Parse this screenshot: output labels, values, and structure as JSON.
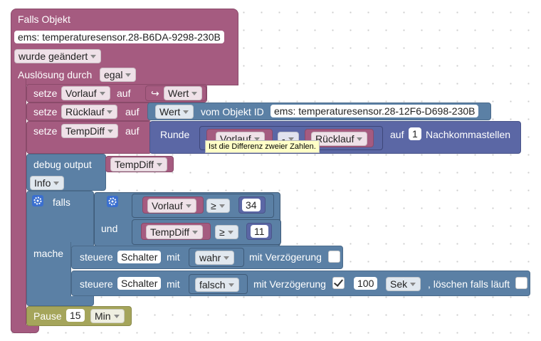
{
  "trigger": {
    "title": "Falls Objekt",
    "object_id": "ems: temperaturesensor.28-B6DA-9298-230B",
    "event": "wurde geändert",
    "trigger_label": "Auslösung durch",
    "trigger_value": "egal"
  },
  "set_vorlauf": {
    "keyword": "setze",
    "variable": "Vorlauf",
    "to": "auf",
    "icon": "↪",
    "value": "Wert"
  },
  "set_ruecklauf": {
    "keyword": "setze",
    "variable": "Rücklauf",
    "to": "auf",
    "value": "Wert",
    "from_label": "vom Objekt ID",
    "object_id": "ems: temperaturesensor.28-12F6-D698-230B"
  },
  "set_tempdiff": {
    "keyword": "setze",
    "variable": "TempDiff",
    "to": "auf",
    "round_label": "Runde",
    "left": "Vorlauf",
    "operator": "-",
    "right": "Rücklauf",
    "to_label": "auf",
    "decimals": 1,
    "decimals_label": "Nachkommastellen",
    "tooltip": "Ist die Differenz zweier Zahlen."
  },
  "debug": {
    "label": "debug output",
    "variable": "TempDiff",
    "level": "Info"
  },
  "if_block": {
    "if_label": "falls",
    "cond1": {
      "variable": "Vorlauf",
      "operator": "≥",
      "value": 34
    },
    "and_label": "und",
    "cond2": {
      "variable": "TempDiff",
      "operator": "≥",
      "value": 11
    },
    "do_label": "mache"
  },
  "control_on": {
    "keyword": "steuere",
    "target": "Schalter",
    "with_label": "mit",
    "value": "wahr",
    "delay_label": "mit Verzögerung"
  },
  "control_off": {
    "keyword": "steuere",
    "target": "Schalter",
    "with_label": "mit",
    "value": "falsch",
    "delay_label": "mit Verzögerung",
    "delay": 100,
    "unit": "Sek",
    "clear_label": ", löschen falls läuft"
  },
  "pause": {
    "label": "Pause",
    "duration": 15,
    "unit": "Min"
  }
}
